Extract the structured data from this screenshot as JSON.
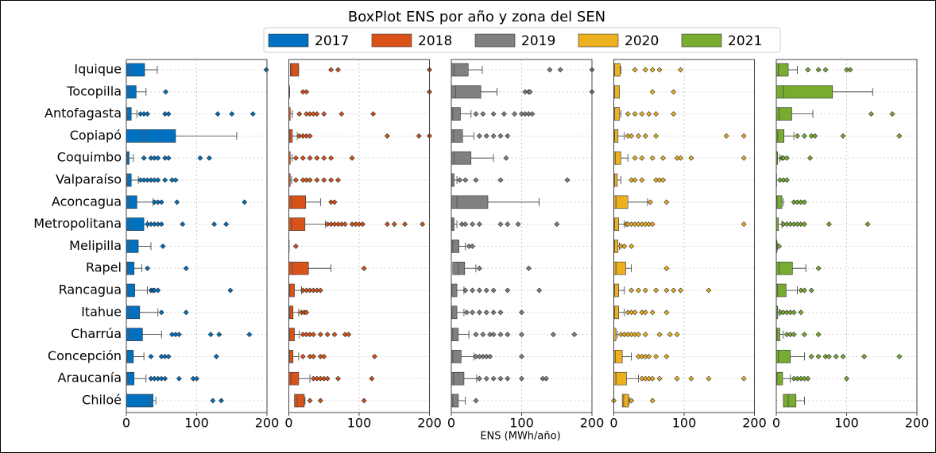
{
  "chart_data": {
    "type": "boxplot",
    "title": "BoxPlot ENS por año y zona del SEN",
    "xlabel": "ENS (MWh/año)",
    "categories": [
      "Iquique",
      "Tocopilla",
      "Antofagasta",
      "Copiapó",
      "Coquimbo",
      "Valparaíso",
      "Aconcagua",
      "Metropolitana",
      "Melipilla",
      "Rapel",
      "Rancagua",
      "Itahue",
      "Charrúa",
      "Concepción",
      "Araucanía",
      "Chiloé"
    ],
    "xlim": [
      0,
      200
    ],
    "xticks": [
      0,
      100,
      200
    ],
    "grid": true,
    "series": [
      {
        "name": "2017",
        "color": "#0070c0",
        "boxes": [
          [
            0,
            0,
            5,
            26,
            44
          ],
          [
            0,
            0,
            3,
            14,
            28
          ],
          [
            0,
            0,
            1,
            7,
            15
          ],
          [
            0,
            0,
            25,
            70,
            157
          ],
          [
            0,
            0,
            1,
            4,
            10
          ],
          [
            0,
            0,
            1,
            7,
            17
          ],
          [
            0,
            0,
            3,
            15,
            38
          ],
          [
            0,
            0,
            5,
            25,
            30
          ],
          [
            0,
            0,
            3,
            17,
            35
          ],
          [
            0,
            0,
            2,
            11,
            22
          ],
          [
            0,
            0,
            2,
            12,
            30
          ],
          [
            0,
            0,
            4,
            19,
            45
          ],
          [
            0,
            0,
            5,
            23,
            50
          ],
          [
            0,
            0,
            2,
            10,
            25
          ],
          [
            0,
            0,
            2,
            11,
            28
          ],
          [
            0,
            0,
            33,
            38,
            42
          ]
        ],
        "outliers": [
          [
            199
          ],
          [
            56
          ],
          [
            20,
            25,
            30,
            55,
            60,
            130,
            150,
            180
          ],
          [],
          [
            25,
            35,
            40,
            45,
            55,
            60,
            105,
            118
          ],
          [
            20,
            25,
            30,
            35,
            40,
            45,
            55,
            65,
            70
          ],
          [
            40,
            45,
            50,
            72,
            168
          ],
          [
            30,
            35,
            40,
            45,
            50,
            80,
            125,
            142
          ],
          [
            52
          ],
          [
            30,
            85
          ],
          [
            35,
            38,
            40,
            45,
            148
          ],
          [
            50,
            85
          ],
          [
            65,
            70,
            75,
            120,
            132,
            175
          ],
          [
            35,
            50,
            55,
            60,
            128
          ],
          [
            35,
            40,
            45,
            50,
            55,
            75,
            95,
            100
          ],
          [
            123,
            135
          ]
        ]
      },
      {
        "name": "2018",
        "color": "#d95319",
        "boxes": [
          [
            2,
            2,
            4,
            14,
            14
          ],
          [
            0,
            0,
            0,
            1,
            1
          ],
          [
            0,
            0,
            0,
            2,
            5
          ],
          [
            0,
            0,
            1,
            5,
            12
          ],
          [
            0,
            0,
            0,
            2,
            5
          ],
          [
            0,
            0,
            0,
            2,
            4
          ],
          [
            0,
            0,
            4,
            24,
            45
          ],
          [
            0,
            0,
            4,
            23,
            52
          ],
          [
            0,
            0,
            0,
            0,
            0
          ],
          [
            0,
            0,
            5,
            28,
            60
          ],
          [
            0,
            0,
            1,
            8,
            18
          ],
          [
            0,
            0,
            1,
            6,
            14
          ],
          [
            0,
            0,
            1,
            8,
            15
          ],
          [
            0,
            0,
            1,
            6,
            14
          ],
          [
            0,
            0,
            3,
            14,
            30
          ],
          [
            8,
            8,
            12,
            22,
            23
          ]
        ],
        "outliers": [
          [
            60,
            70,
            200
          ],
          [
            20,
            25,
            200
          ],
          [
            15,
            25,
            30,
            35,
            40,
            50,
            75,
            120
          ],
          [
            15,
            20,
            25,
            30,
            140,
            185,
            200
          ],
          [
            10,
            20,
            30,
            40,
            50,
            60,
            90
          ],
          [
            10,
            20,
            25,
            30,
            40,
            50,
            60,
            70
          ],
          [
            60,
            65
          ],
          [
            55,
            60,
            65,
            70,
            75,
            80,
            90,
            95,
            100,
            105,
            140,
            150,
            165,
            190
          ],
          [
            10
          ],
          [
            107
          ],
          [
            20,
            25,
            30,
            35,
            40,
            45
          ],
          [
            18,
            22,
            25
          ],
          [
            20,
            25,
            30,
            35,
            45,
            55,
            65,
            80,
            85
          ],
          [
            20,
            30,
            35,
            45,
            50,
            122
          ],
          [
            35,
            40,
            45,
            50,
            55,
            70,
            118
          ],
          [
            30,
            45,
            107
          ]
        ]
      },
      {
        "name": "2019",
        "color": "#808080",
        "boxes": [
          [
            0,
            0,
            4,
            24,
            44
          ],
          [
            0,
            0,
            6,
            42,
            65
          ],
          [
            0,
            0,
            2,
            13,
            28
          ],
          [
            0,
            0,
            3,
            16,
            32
          ],
          [
            0,
            0,
            4,
            28,
            60
          ],
          [
            0,
            0,
            1,
            4,
            8
          ],
          [
            0,
            0,
            8,
            52,
            125
          ],
          [
            0,
            0,
            1,
            4,
            8
          ],
          [
            0,
            0,
            2,
            11,
            20
          ],
          [
            2,
            2,
            10,
            19,
            35
          ],
          [
            0,
            0,
            1,
            8,
            18
          ],
          [
            0,
            0,
            1,
            8,
            18
          ],
          [
            0,
            0,
            2,
            10,
            25
          ],
          [
            0,
            0,
            2,
            14,
            32
          ],
          [
            0,
            0,
            3,
            18,
            36
          ],
          [
            0,
            0,
            2,
            10,
            20
          ]
        ],
        "outliers": [
          [
            140,
            155,
            200
          ],
          [
            105,
            110,
            112,
            200
          ],
          [
            35,
            45,
            60,
            75,
            90,
            100,
            105,
            110,
            115
          ],
          [
            40,
            50,
            60,
            70,
            80
          ],
          [
            78
          ],
          [
            12,
            20,
            35,
            70,
            165
          ],
          [],
          [
            15,
            20,
            30,
            40,
            70,
            80,
            95,
            150
          ],
          [
            25,
            30
          ],
          [
            40,
            110
          ],
          [
            20,
            30,
            40,
            50,
            60,
            80,
            125
          ],
          [
            22,
            30,
            40,
            50,
            60,
            70,
            100
          ],
          [
            35,
            45,
            55,
            60,
            70,
            80,
            100,
            145,
            175
          ],
          [
            35,
            40,
            45,
            50,
            55,
            100
          ],
          [
            40,
            50,
            60,
            70,
            80,
            100,
            130,
            135
          ],
          [
            35
          ]
        ]
      },
      {
        "name": "2020",
        "color": "#edb120",
        "boxes": [
          [
            0,
            0,
            1,
            9,
            10
          ],
          [
            0,
            0,
            1,
            8,
            8
          ],
          [
            0,
            0,
            1,
            8,
            10
          ],
          [
            0,
            0,
            1,
            6,
            15
          ],
          [
            0,
            0,
            2,
            10,
            20
          ],
          [
            0,
            0,
            1,
            5,
            10
          ],
          [
            0,
            0,
            3,
            20,
            48
          ],
          [
            0,
            0,
            1,
            7,
            15
          ],
          [
            0,
            0,
            1,
            6,
            8
          ],
          [
            0,
            0,
            3,
            17,
            25
          ],
          [
            0,
            0,
            1,
            7,
            15
          ],
          [
            0,
            0,
            1,
            7,
            15
          ],
          [
            0,
            0,
            0,
            3,
            5
          ],
          [
            0,
            0,
            2,
            12,
            25
          ],
          [
            0,
            0,
            3,
            18,
            35
          ],
          [
            12,
            12,
            14,
            21,
            22
          ]
        ],
        "outliers": [
          [
            30,
            45,
            55,
            65,
            95
          ],
          [
            55,
            85
          ],
          [
            20,
            30,
            40,
            50,
            60,
            85
          ],
          [
            20,
            25,
            35,
            45,
            60,
            160,
            185
          ],
          [
            30,
            40,
            55,
            70,
            90,
            95,
            110,
            185
          ],
          [
            25,
            30,
            40,
            60,
            65,
            70
          ],
          [
            52,
            75
          ],
          [
            18,
            20,
            25,
            30,
            35,
            40,
            45,
            50,
            55,
            185
          ],
          [
            10,
            15,
            25
          ],
          [
            75
          ],
          [
            25,
            35,
            45,
            60,
            75,
            85,
            95,
            135
          ],
          [
            20,
            25,
            30,
            40,
            45,
            55,
            75
          ],
          [
            10,
            15,
            20,
            25,
            30,
            35,
            45,
            65,
            80,
            90
          ],
          [
            35,
            40,
            45,
            50,
            60,
            75
          ],
          [
            40,
            45,
            50,
            55,
            65,
            90,
            110,
            135,
            185
          ],
          [
            0,
            25,
            55
          ]
        ]
      },
      {
        "name": "2021",
        "color": "#77ac30",
        "boxes": [
          [
            0,
            0,
            3,
            17,
            30
          ],
          [
            0,
            0,
            10,
            80,
            137
          ],
          [
            0,
            0,
            4,
            22,
            52
          ],
          [
            0,
            0,
            2,
            11,
            25
          ],
          [
            0,
            0,
            0,
            2,
            5
          ],
          [
            0,
            0,
            0,
            0,
            0
          ],
          [
            0,
            0,
            1,
            8,
            10
          ],
          [
            0,
            0,
            0,
            3,
            8
          ],
          [
            0,
            0,
            0,
            1,
            2
          ],
          [
            0,
            0,
            4,
            23,
            42
          ],
          [
            0,
            0,
            2,
            14,
            30
          ],
          [
            0,
            0,
            0,
            2,
            4
          ],
          [
            0,
            0,
            1,
            5,
            10
          ],
          [
            0,
            0,
            3,
            20,
            40
          ],
          [
            0,
            0,
            1,
            9,
            20
          ],
          [
            10,
            10,
            17,
            28,
            40
          ]
        ],
        "outliers": [
          [
            45,
            60,
            70,
            100,
            105
          ],
          [],
          [
            135,
            165
          ],
          [
            30,
            40,
            50,
            55,
            95,
            175
          ],
          [
            8,
            10,
            15,
            48
          ],
          [
            5,
            10,
            15
          ],
          [
            25,
            30,
            35,
            40
          ],
          [
            10,
            15,
            20,
            25,
            30,
            35,
            40,
            75,
            130
          ],
          [
            4
          ],
          [
            60
          ],
          [
            35,
            40,
            50
          ],
          [
            6,
            10,
            15,
            20,
            25,
            35
          ],
          [
            15,
            20,
            25,
            40,
            60
          ],
          [
            50,
            60,
            70,
            75,
            85,
            95,
            125,
            175
          ],
          [
            25,
            30,
            35,
            40,
            45,
            100
          ],
          []
        ]
      }
    ]
  }
}
